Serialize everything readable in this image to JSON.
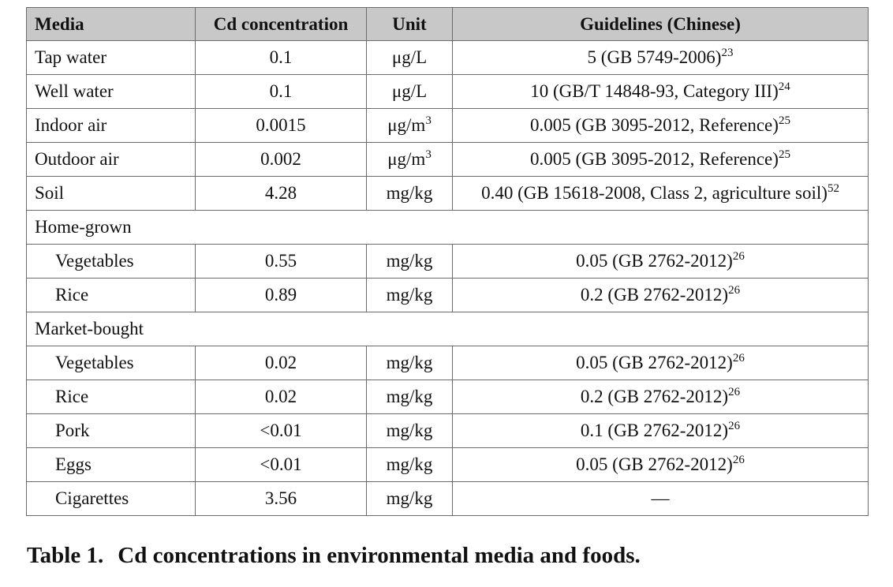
{
  "table": {
    "headers": [
      "Media",
      "Cd concentration",
      "Unit",
      "Guidelines (Chinese)"
    ],
    "rows": [
      {
        "media": "Tap water",
        "conc": "0.1",
        "unit": "μg/L",
        "unit_sup": "",
        "guideline": "5 (GB 5749-2006)",
        "ref": "23"
      },
      {
        "media": "Well water",
        "conc": "0.1",
        "unit": "μg/L",
        "unit_sup": "",
        "guideline": "10 (GB/T 14848-93, Category III)",
        "ref": "24"
      },
      {
        "media": "Indoor air",
        "conc": "0.0015",
        "unit": "μg/m",
        "unit_sup": "3",
        "guideline": "0.005 (GB 3095-2012, Reference)",
        "ref": "25"
      },
      {
        "media": "Outdoor air",
        "conc": "0.002",
        "unit": "μg/m",
        "unit_sup": "3",
        "guideline": "0.005 (GB 3095-2012, Reference)",
        "ref": "25"
      },
      {
        "media": "Soil",
        "conc": "4.28",
        "unit": "mg/kg",
        "unit_sup": "",
        "guideline": "0.40 (GB 15618-2008, Class 2, agriculture soil)",
        "ref": "52"
      }
    ],
    "group_home": {
      "label": "Home-grown",
      "rows": [
        {
          "media": "Vegetables",
          "conc": "0.55",
          "unit": "mg/kg",
          "guideline": "0.05 (GB 2762-2012)",
          "ref": "26"
        },
        {
          "media": "Rice",
          "conc": "0.89",
          "unit": "mg/kg",
          "guideline": "0.2 (GB 2762-2012)",
          "ref": "26"
        }
      ]
    },
    "group_market": {
      "label": "Market-bought",
      "rows": [
        {
          "media": "Vegetables",
          "conc": "0.02",
          "unit": "mg/kg",
          "guideline": "0.05 (GB 2762-2012)",
          "ref": "26"
        },
        {
          "media": "Rice",
          "conc": "0.02",
          "unit": "mg/kg",
          "guideline": "0.2 (GB 2762-2012)",
          "ref": "26"
        },
        {
          "media": "Pork",
          "conc": "<0.01",
          "unit": "mg/kg",
          "guideline": "0.1 (GB 2762-2012)",
          "ref": "26"
        },
        {
          "media": "Eggs",
          "conc": "<0.01",
          "unit": "mg/kg",
          "guideline": "0.05 (GB 2762-2012)",
          "ref": "26"
        },
        {
          "media": "Cigarettes",
          "conc": "3.56",
          "unit": "mg/kg",
          "guideline": "—",
          "ref": ""
        }
      ]
    }
  },
  "caption": {
    "number": "Table 1.",
    "text": "Cd concentrations in environmental media and foods."
  }
}
